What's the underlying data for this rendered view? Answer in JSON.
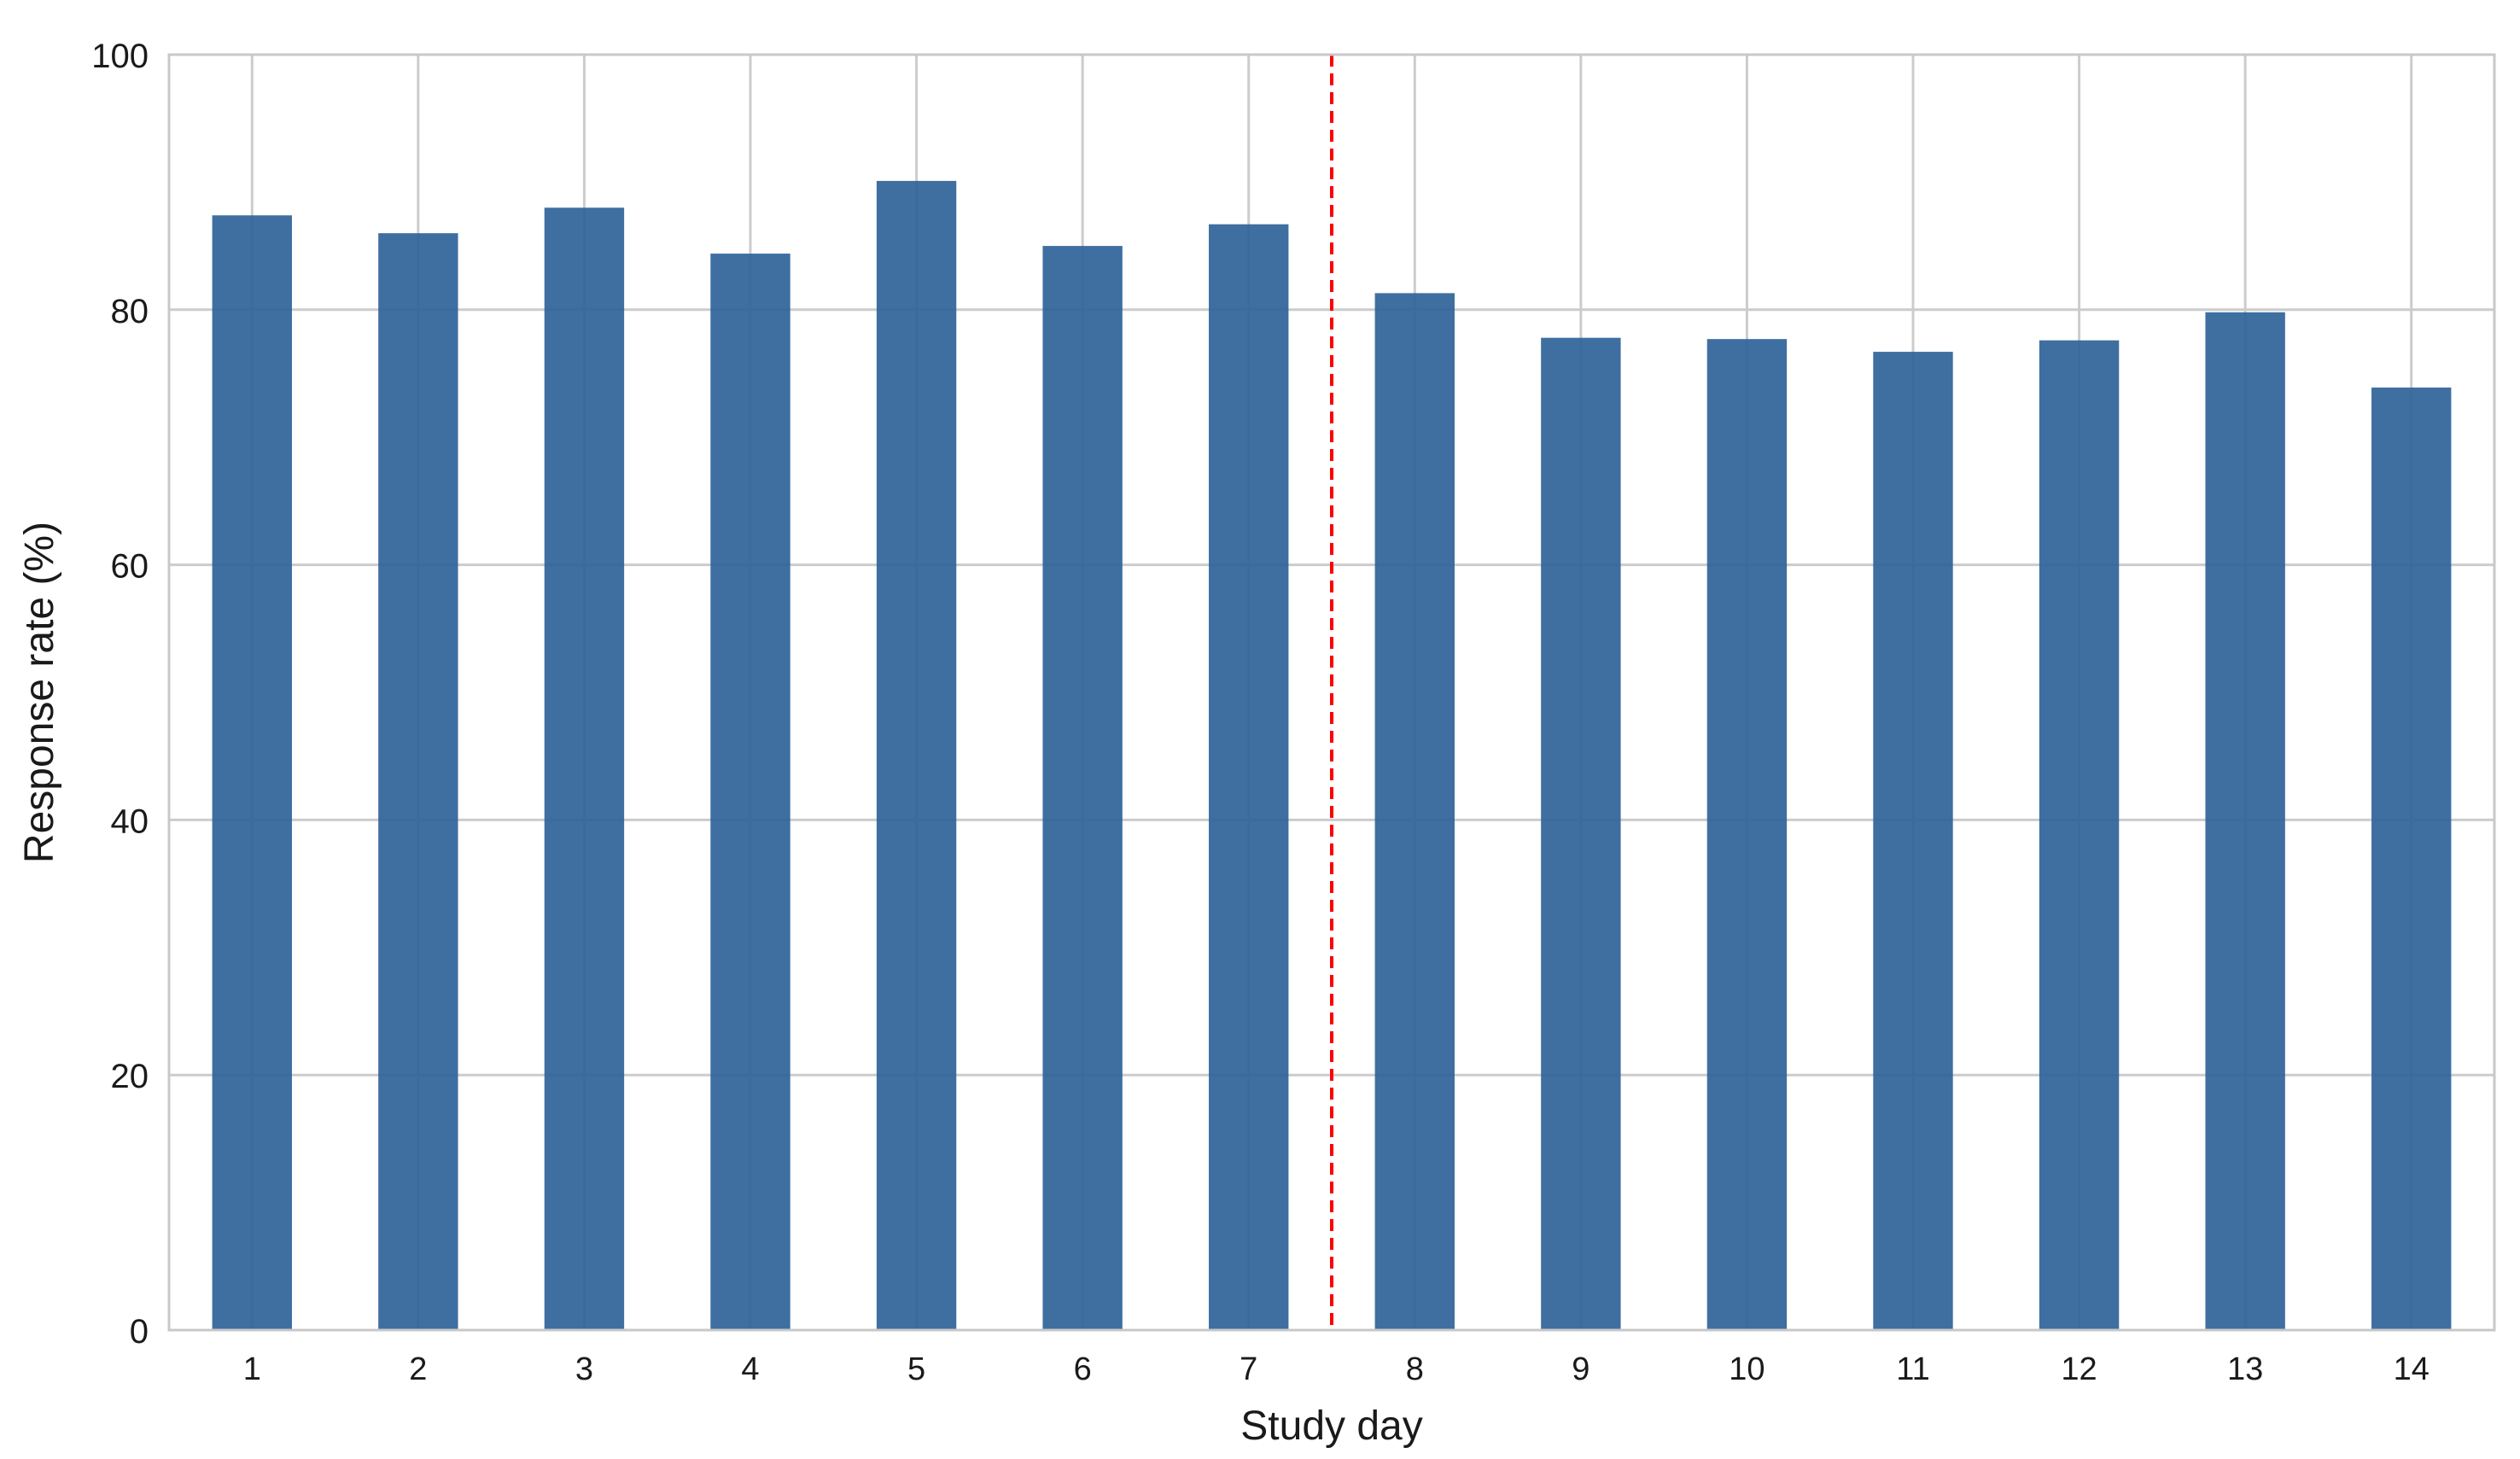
{
  "chart_data": {
    "type": "bar",
    "title": "",
    "xlabel": "Study day",
    "ylabel": "Response rate (%)",
    "categories": [
      "1",
      "2",
      "3",
      "4",
      "5",
      "6",
      "7",
      "8",
      "9",
      "10",
      "11",
      "12",
      "13",
      "14"
    ],
    "values": [
      87.4,
      86.0,
      88.0,
      84.4,
      90.1,
      85.0,
      86.7,
      81.3,
      77.8,
      77.7,
      76.7,
      77.6,
      79.8,
      73.9
    ],
    "ylim": [
      0,
      100
    ],
    "yticks": [
      0,
      20,
      40,
      60,
      80,
      100
    ],
    "grid": true,
    "bar_color": "#2f6399",
    "reference_line": {
      "position_between": [
        "7",
        "8"
      ],
      "style": "dashed",
      "color": "#ff0000"
    }
  }
}
